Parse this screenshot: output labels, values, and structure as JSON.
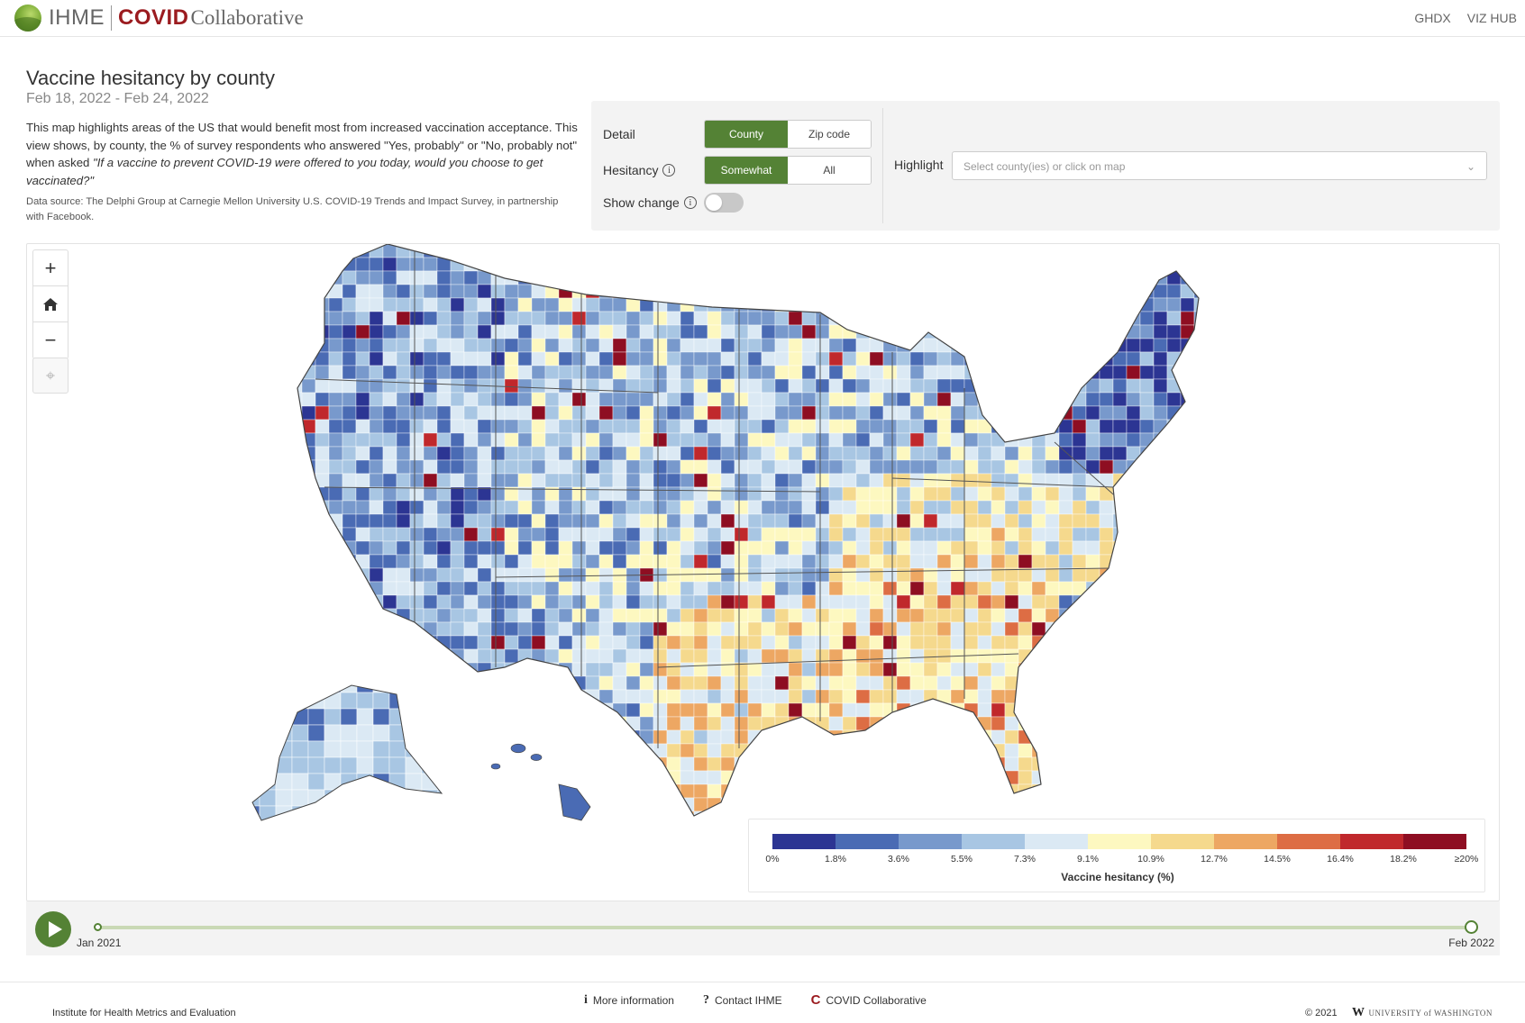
{
  "header": {
    "brand_ihme": "IHME",
    "brand_covid": "COVID",
    "brand_collab": "Collaborative",
    "nav": [
      "GHDX",
      "VIZ HUB"
    ]
  },
  "page": {
    "title": "Vaccine hesitancy by county",
    "date_range": "Feb 18, 2022 - Feb 24, 2022",
    "description_plain": "This map highlights areas of the US that would benefit most from increased vaccination acceptance. This view shows, by county, the % of survey respondents who answered \"Yes, probably\" or \"No, probably not\" when asked ",
    "description_quote": "\"If a vaccine to prevent COVID-19 were offered to you today, would you choose to get vaccinated?\"",
    "source": "Data source: The Delphi Group at Carnegie Mellon University U.S. COVID-19 Trends and Impact Survey, in partnership with Facebook."
  },
  "controls": {
    "detail_label": "Detail",
    "detail_options": [
      "County",
      "Zip code"
    ],
    "detail_selected": "County",
    "hesitancy_label": "Hesitancy",
    "hesitancy_options": [
      "Somewhat",
      "All"
    ],
    "hesitancy_selected": "Somewhat",
    "show_change_label": "Show change",
    "show_change_on": false,
    "highlight_label": "Highlight",
    "highlight_placeholder": "Select county(ies) or click on map"
  },
  "map": {
    "zoom_controls": [
      "zoom-in",
      "home",
      "zoom-out",
      "locate"
    ],
    "legend": {
      "title": "Vaccine hesitancy (%)",
      "ticks": [
        "0%",
        "1.8%",
        "3.6%",
        "5.5%",
        "7.3%",
        "9.1%",
        "10.9%",
        "12.7%",
        "14.5%",
        "16.4%",
        "18.2%",
        "≥20%"
      ],
      "colors": [
        "#2c3593",
        "#4a6bb4",
        "#7899cc",
        "#a8c6e3",
        "#dbe9f4",
        "#fdf8c0",
        "#f5d98d",
        "#eda763",
        "#dd6d44",
        "#c0282c",
        "#8e0e22"
      ]
    },
    "region_colors": {
      "water": "#ffffff",
      "state_border": "#444444",
      "no_data": "#dcdcdc"
    }
  },
  "timeline": {
    "start_label": "Jan 2021",
    "end_label": "Feb 2022",
    "position": 1.0
  },
  "footer": {
    "links": [
      "More information",
      "Contact IHME",
      "COVID Collaborative"
    ],
    "institute": "Institute for Health Metrics and Evaluation",
    "copyright": "© 2021",
    "university": "UNIVERSITY of WASHINGTON"
  }
}
